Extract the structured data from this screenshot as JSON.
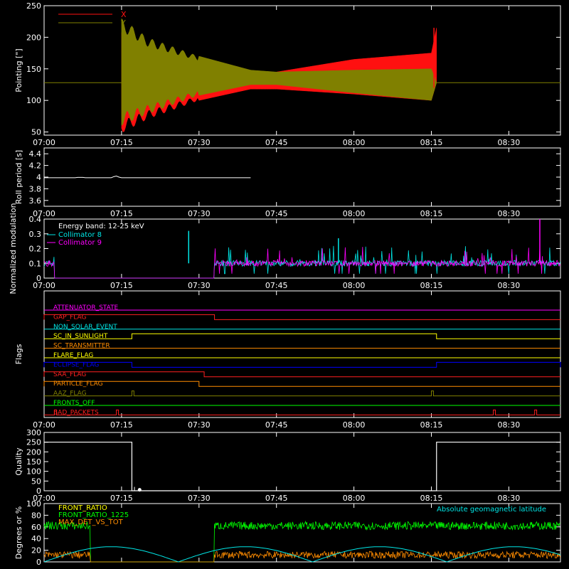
{
  "colors": {
    "background": "#000000",
    "axis": "#ffffff",
    "x": "#ff1010",
    "y": "#808000",
    "cyan": "#00e6e6",
    "magenta": "#ff00ff",
    "green": "#00ff00",
    "orange": "#ff8c00",
    "blue": "#0000ff",
    "yellow": "#ffff00"
  },
  "time_ticks": [
    "07:00",
    "07:15",
    "07:30",
    "07:45",
    "08:00",
    "08:15",
    "08:30"
  ],
  "chart_data": [
    {
      "type": "line",
      "ylabel": "Pointing [\"]",
      "ylim": [
        45,
        250
      ],
      "yticks": [
        50,
        100,
        150,
        200,
        250
      ],
      "legend_position": "top-left",
      "series": [
        {
          "name": "X",
          "color": "#ff1010",
          "x": [
            "07:00",
            "07:15",
            "07:20",
            "07:30",
            "07:40",
            "07:45",
            "08:00",
            "08:15",
            "08:16",
            "08:40"
          ],
          "y_low": [
            128,
            48,
            70,
            100,
            118,
            118,
            110,
            100,
            128,
            128
          ],
          "y_high": [
            128,
            215,
            185,
            160,
            140,
            145,
            165,
            175,
            215,
            128
          ]
        },
        {
          "name": "Y",
          "color": "#808000",
          "x": [
            "07:00",
            "07:15",
            "07:20",
            "07:30",
            "07:40",
            "07:45",
            "08:00",
            "08:15",
            "08:16",
            "08:40"
          ],
          "y_low": [
            128,
            60,
            78,
            108,
            125,
            125,
            112,
            100,
            128,
            128
          ],
          "y_high": [
            128,
            230,
            200,
            170,
            148,
            145,
            148,
            150,
            128,
            128
          ]
        }
      ]
    },
    {
      "type": "line",
      "ylabel": "Roll period [s]",
      "ylim": [
        3.5,
        4.5
      ],
      "yticks": [
        3.6,
        3.8,
        4.0,
        4.2,
        4.4
      ],
      "series": [
        {
          "x": [
            "07:00",
            "07:10",
            "07:15",
            "07:30",
            "07:45",
            "08:00",
            "08:15"
          ],
          "y": [
            3.99,
            3.99,
            4.01,
            4.0,
            3.99,
            3.99,
            3.99
          ]
        }
      ]
    },
    {
      "type": "line",
      "ylabel": "Normalized modulation",
      "ylim": [
        0.0,
        0.4
      ],
      "yticks": [
        0.0,
        0.1,
        0.2,
        0.3,
        0.4
      ],
      "annotation": "Energy band: 12-25 keV",
      "legend_position": "top-left",
      "series": [
        {
          "name": "Collimator 8",
          "color": "#00e6e6",
          "baseline": 0.1,
          "active": [
            [
              "07:00",
              "07:02"
            ],
            [
              "07:33",
              "08:40"
            ]
          ]
        },
        {
          "name": "Collimator 9",
          "color": "#ff00ff",
          "baseline": 0.1,
          "active": [
            [
              "07:00",
              "07:02"
            ],
            [
              "07:33",
              "08:40"
            ]
          ]
        }
      ]
    },
    {
      "type": "line",
      "ylabel": "Flags",
      "flags": [
        {
          "name": "ATTENUATOR_STATE",
          "color": "#ff00ff",
          "high": []
        },
        {
          "name": "GAP_FLAG",
          "color": "#ff2020",
          "high": [
            [
              "07:00",
              "07:33"
            ]
          ]
        },
        {
          "name": "NON_SOLAR_EVENT",
          "color": "#00e6e6",
          "high": []
        },
        {
          "name": "SC_IN_SUNLIGHT",
          "color": "#ffff00",
          "high": [
            [
              "07:17",
              "08:16"
            ]
          ]
        },
        {
          "name": "SC_TRANSMITTER",
          "color": "#ff8c00",
          "high": []
        },
        {
          "name": "FLARE_FLAG",
          "color": "#ffff00",
          "high": []
        },
        {
          "name": "ECLIPSE_FLAG",
          "color": "#0000ff",
          "high": [
            [
              "07:00",
              "07:17"
            ],
            [
              "08:16",
              "08:40"
            ]
          ]
        },
        {
          "name": "SAA_FLAG",
          "color": "#ff2020",
          "high": [
            [
              "07:00",
              "07:31"
            ]
          ]
        },
        {
          "name": "PARTICLE_FLAG",
          "color": "#ff8c00",
          "high": [
            [
              "07:00",
              "07:30"
            ]
          ]
        },
        {
          "name": "AAZ_FLAG",
          "color": "#808000",
          "high": [
            [
              "07:17",
              "07:17"
            ],
            [
              "08:15",
              "08:15"
            ]
          ]
        },
        {
          "name": "FRONTS_OFF",
          "color": "#00ff00",
          "high": []
        },
        {
          "name": "BAD_PACKETS",
          "color": "#ff2020",
          "high": [
            [
              "07:02",
              "07:02"
            ],
            [
              "07:14",
              "07:14"
            ],
            [
              "08:27",
              "08:27"
            ],
            [
              "08:35",
              "08:35"
            ]
          ]
        }
      ]
    },
    {
      "type": "line",
      "ylabel": "Quality",
      "ylim": [
        0,
        300
      ],
      "yticks": [
        0,
        50,
        100,
        150,
        200,
        250,
        300
      ],
      "series": [
        {
          "x": [
            "07:00",
            "07:17",
            "07:17",
            "08:16",
            "08:16",
            "08:40"
          ],
          "y": [
            250,
            250,
            0,
            0,
            250,
            250
          ]
        }
      ]
    },
    {
      "type": "line",
      "ylabel": "Degrees or %",
      "ylim": [
        0,
        100
      ],
      "yticks": [
        0,
        20,
        40,
        60,
        80,
        100
      ],
      "annotation": "Absolute geomagnetic latitude",
      "legend_position": "top-left",
      "series": [
        {
          "name": "FRONT_RATIO",
          "color": "#ffff00"
        },
        {
          "name": "FRONT_RATIO_1225",
          "color": "#00ff00",
          "baseline": 62,
          "active": [
            [
              "07:00",
              "07:09"
            ],
            [
              "07:33",
              "08:40"
            ]
          ]
        },
        {
          "name": "MAX_DET_VS_TOT",
          "color": "#ff8c00",
          "baseline": 12,
          "active": [
            [
              "07:00",
              "07:09"
            ],
            [
              "07:33",
              "08:40"
            ]
          ]
        },
        {
          "name": "Absolute geomagnetic latitude",
          "color": "#00e6e6",
          "x": [
            "07:00",
            "07:15",
            "07:33",
            "07:45",
            "07:52",
            "08:00",
            "08:15",
            "08:24",
            "08:40"
          ],
          "y": [
            0,
            22,
            0,
            20,
            0,
            18,
            15,
            0,
            25
          ]
        }
      ]
    }
  ]
}
